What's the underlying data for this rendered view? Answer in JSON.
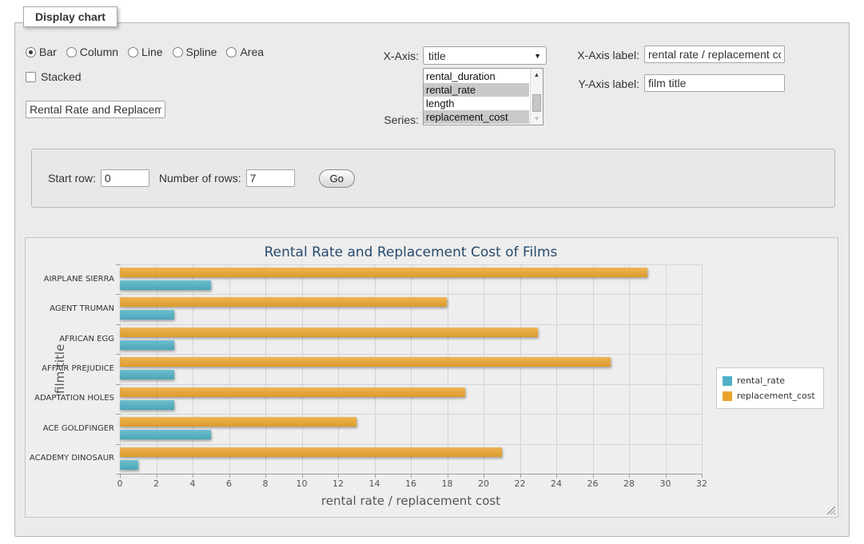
{
  "fieldset": {
    "legend": "Display chart"
  },
  "icons": {
    "select_arrow": "▼",
    "scroll_up": "▲",
    "scroll_down": "▼"
  },
  "chart_type": {
    "options": [
      {
        "label": "Bar",
        "checked": true
      },
      {
        "label": "Column",
        "checked": false
      },
      {
        "label": "Line",
        "checked": false
      },
      {
        "label": "Spline",
        "checked": false
      },
      {
        "label": "Area",
        "checked": false
      }
    ]
  },
  "stacked": {
    "label": "Stacked",
    "checked": false
  },
  "chart_title_input": {
    "value": "Rental Rate and Replacemen"
  },
  "x_axis_select": {
    "label": "X-Axis:",
    "value": "title"
  },
  "series_list": {
    "label": "Series:",
    "options": [
      {
        "label": "rental_duration",
        "selected": false
      },
      {
        "label": "rental_rate",
        "selected": true
      },
      {
        "label": "length",
        "selected": false
      },
      {
        "label": "replacement_cost",
        "selected": true
      }
    ]
  },
  "x_axis_label_input": {
    "label": "X-Axis label:",
    "value": "rental rate / replacement cost"
  },
  "y_axis_label_input": {
    "label": "Y-Axis label:",
    "value": "film title"
  },
  "row_controls": {
    "start_row_label": "Start row:",
    "start_row_value": "0",
    "num_rows_label": "Number of rows:",
    "num_rows_value": "7",
    "go_label": "Go"
  },
  "chart_data": {
    "type": "bar",
    "title": "Rental Rate and Replacement Cost of Films",
    "xlabel": "rental rate / replacement cost",
    "ylabel": "film title",
    "categories": [
      "AIRPLANE SIERRA",
      "AGENT TRUMAN",
      "AFRICAN EGG",
      "AFFAIR PREJUDICE",
      "ADAPTATION HOLES",
      "ACE GOLDFINGER",
      "ACADEMY DINOSAUR"
    ],
    "categories_order": "top_to_bottom",
    "series": [
      {
        "name": "rental_rate",
        "color": "#4FB0C4",
        "values": [
          4.99,
          2.99,
          2.99,
          2.99,
          2.99,
          4.99,
          0.99
        ]
      },
      {
        "name": "replacement_cost",
        "color": "#E9A42E",
        "values": [
          28.99,
          17.99,
          22.99,
          26.99,
          18.99,
          12.99,
          20.99
        ]
      }
    ],
    "group_order_top_to_bottom": [
      "replacement_cost",
      "rental_rate"
    ],
    "xlim": [
      0,
      32
    ],
    "xticks": [
      0,
      2,
      4,
      6,
      8,
      10,
      12,
      14,
      16,
      18,
      20,
      22,
      24,
      26,
      28,
      30,
      32
    ],
    "grid": true,
    "legend_position": "right-middle"
  }
}
